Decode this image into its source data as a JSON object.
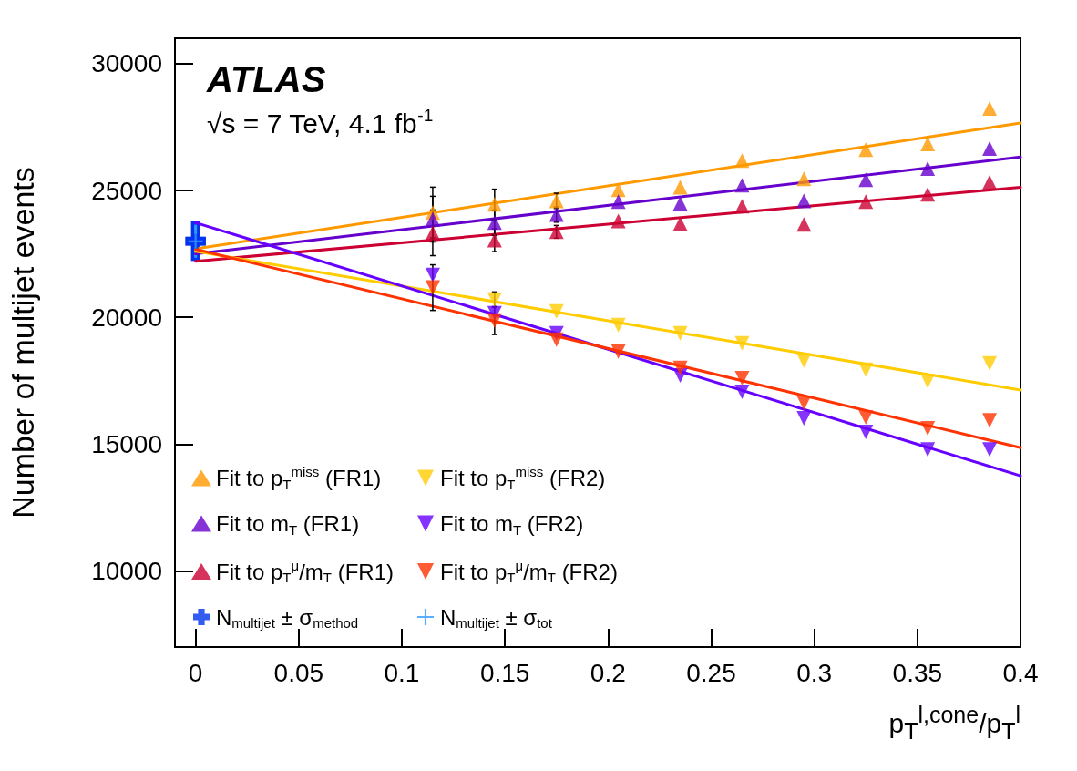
{
  "chart_data": {
    "type": "scatter",
    "title": "ATLAS",
    "subtitle": "√s = 7 TeV, 4.1 fb$^{-1}$",
    "xlabel": "p$_{T}$$^{l,cone}$/p$_{T}$$^{l}$",
    "ylabel": "Number of multijet events",
    "xlim": [
      -0.01,
      0.4
    ],
    "xticks": [
      0,
      0.05,
      0.1,
      0.15,
      0.2,
      0.25,
      0.3,
      0.35,
      0.4
    ],
    "ylim": [
      7000,
      31000
    ],
    "yticks": [
      10000,
      15000,
      20000,
      25000,
      30000
    ],
    "grid": false,
    "legend": "bottom left",
    "series": [
      {
        "name": "Fit to p$_{T}$$^{miss}$ (FR1)",
        "color": "#ff9900",
        "marker": "triangle",
        "x": [
          0.115,
          0.145,
          0.175,
          0.205,
          0.235,
          0.265,
          0.295,
          0.325,
          0.355,
          0.385
        ],
        "values": [
          24130,
          24450,
          24590,
          25030,
          25130,
          26180,
          25460,
          26610,
          26830,
          28230
        ],
        "errors": [
          1000,
          600,
          300,
          null,
          null,
          null,
          null,
          null,
          null,
          null
        ]
      },
      {
        "name": "Fit to m$_{T}$ (FR1)",
        "color": "#6600cc",
        "marker": "triangle",
        "x": [
          0.115,
          0.145,
          0.175,
          0.205,
          0.235,
          0.265,
          0.295,
          0.325,
          0.355,
          0.385
        ],
        "values": [
          23870,
          23730,
          24050,
          24560,
          24490,
          25210,
          24590,
          25420,
          25860,
          26650
        ],
        "errors": [
          900,
          500,
          300,
          null,
          null,
          null,
          null,
          null,
          null,
          null
        ]
      },
      {
        "name": "Fit to p$_{T}$$^{μ}$/m$_{T}$ (FR1)",
        "color": "#cc0033",
        "marker": "triangle",
        "x": [
          0.115,
          0.145,
          0.175,
          0.205,
          0.235,
          0.265,
          0.295,
          0.325,
          0.355,
          0.385
        ],
        "values": [
          23330,
          23040,
          23370,
          23800,
          23690,
          24380,
          23660,
          24560,
          24850,
          25320
        ],
        "errors": [
          900,
          450,
          250,
          null,
          null,
          null,
          null,
          null,
          null,
          null
        ]
      },
      {
        "name": "N$_{multijet}$ ± σ$_{method}$",
        "color": "#0033ee",
        "marker": "cross",
        "x": [
          0
        ],
        "values": [
          23000
        ],
        "errors": [
          780
        ],
        "xerrors": [
          0.005
        ]
      },
      {
        "name": "Fit to p$_{T}$$^{miss}$ (FR2)",
        "color": "#ffcc00",
        "marker": "triangle-down",
        "x": [
          0.145,
          0.175,
          0.205,
          0.235,
          0.265,
          0.295,
          0.325,
          0.355,
          0.385
        ],
        "values": [
          20700,
          20230,
          19690,
          19370,
          18970,
          18290,
          17930,
          17490,
          18180
        ],
        "errors": [
          300,
          null,
          null,
          null,
          null,
          null,
          null,
          null,
          null
        ]
      },
      {
        "name": "Fit to m$_{T}$ (FR2)",
        "color": "#6600ff",
        "marker": "triangle-down",
        "x": [
          0.115,
          0.145,
          0.175,
          0.205,
          0.235,
          0.265,
          0.295,
          0.325,
          0.355,
          0.385
        ],
        "values": [
          21670,
          20160,
          19370,
          null,
          17710,
          17060,
          16020,
          15480,
          14790,
          14790
        ],
        "errors": [
          null,
          null,
          null,
          null,
          null,
          null,
          null,
          null,
          null,
          null
        ]
      },
      {
        "name": "Fit to p$_{T}$$^{μ}$/m$_{T}$ (FR2)",
        "color": "#ff3300",
        "marker": "triangle-down",
        "x": [
          0.115,
          0.145,
          0.175,
          0.205,
          0.235,
          0.265,
          0.295,
          0.325,
          0.355,
          0.385
        ],
        "values": [
          21170,
          19870,
          19120,
          18650,
          18000,
          17600,
          16630,
          16050,
          15620,
          15940
        ],
        "errors": [
          900,
          550,
          null,
          null,
          null,
          null,
          null,
          null,
          null,
          null
        ]
      },
      {
        "name": "N$_{multijet}$ ± σ$_{tot}$",
        "color": "#3399ff",
        "marker": "cross",
        "x": [
          0
        ],
        "values": [
          23000
        ],
        "errors": [
          650
        ]
      },
      {
        "type": "line",
        "color": "#ff9900",
        "marker": "none",
        "x": [
          0,
          0.4
        ],
        "values": [
          22700,
          27660
        ]
      },
      {
        "type": "line",
        "color": "#6600cc",
        "marker": "none",
        "x": [
          0,
          0.4
        ],
        "values": [
          22500,
          26320
        ]
      },
      {
        "type": "line",
        "color": "#cc0033",
        "marker": "none",
        "x": [
          0,
          0.4
        ],
        "values": [
          22210,
          25130
        ]
      },
      {
        "type": "line",
        "color": "#ffcc00",
        "marker": "none",
        "x": [
          0,
          0.4
        ],
        "values": [
          22600,
          17130
        ]
      },
      {
        "type": "line",
        "color": "#6600ff",
        "marker": "none",
        "x": [
          0,
          0.4
        ],
        "values": [
          23730,
          13750
        ]
      },
      {
        "type": "line",
        "color": "#ff3300",
        "marker": "none",
        "x": [
          0,
          0.4
        ],
        "values": [
          22680,
          14860
        ]
      }
    ]
  }
}
